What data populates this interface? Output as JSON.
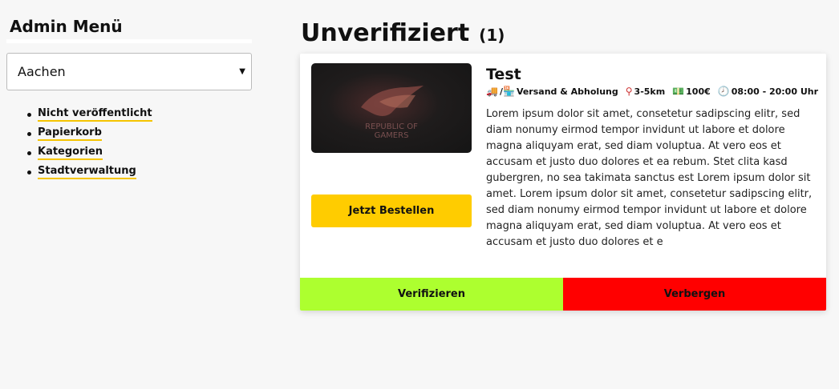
{
  "sidebar": {
    "title": "Admin Menü",
    "city_select": {
      "value": "Aachen"
    },
    "items": [
      {
        "label": "Nicht veröffentlicht"
      },
      {
        "label": "Papierkorb"
      },
      {
        "label": "Kategorien"
      },
      {
        "label": "Stadtverwaltung"
      }
    ]
  },
  "main": {
    "title": "Unverifiziert",
    "count": "(1)",
    "card": {
      "image_logo_text": "REPUBLIC OF GAMERS",
      "order_label": "Jetzt Bestellen",
      "title": "Test",
      "meta": {
        "delivery": "Versand & Abholung",
        "distance": "3-5km",
        "price": "100€",
        "hours": "08:00 - 20:00 Uhr"
      },
      "description": "Lorem ipsum dolor sit amet, consetetur sadipscing elitr, sed diam nonumy eirmod tempor invidunt ut labore et dolore magna aliquyam erat, sed diam voluptua. At vero eos et accusam et justo duo dolores et ea rebum. Stet clita kasd gubergren, no sea takimata sanctus est Lorem ipsum dolor sit amet. Lorem ipsum dolor sit amet, consetetur sadipscing elitr, sed diam nonumy eirmod tempor invidunt ut labore et dolore magna aliquyam erat, sed diam voluptua. At vero eos et accusam et justo duo dolores et e",
      "verify_label": "Verifizieren",
      "hide_label": "Verbergen"
    }
  },
  "colors": {
    "accent": "#ffcc00",
    "underline": "#f5c400",
    "verify": "#adff2f",
    "hide": "#ff0000"
  }
}
